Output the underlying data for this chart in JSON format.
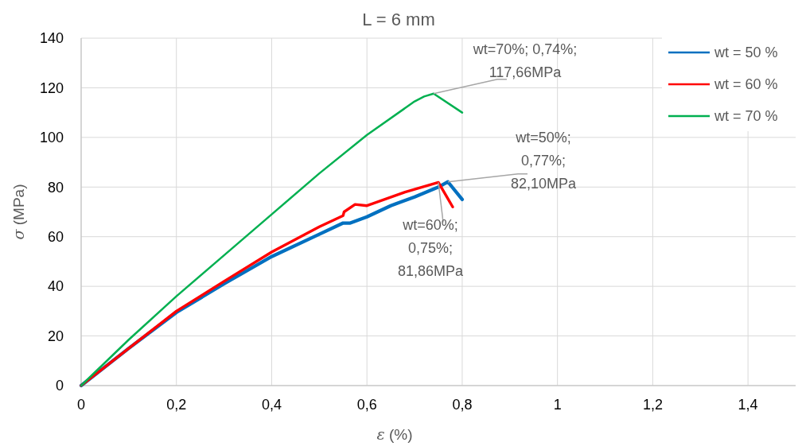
{
  "chart_data": {
    "type": "line",
    "title": "L = 6 mm",
    "xlabel": "ε (%)",
    "ylabel": "σ (MPa)",
    "xlim": [
      0,
      1.5
    ],
    "ylim": [
      0,
      140
    ],
    "xticks": [
      0,
      {
        "value": 0.2,
        "label": "0,2"
      },
      {
        "value": 0.4,
        "label": "0,4"
      },
      {
        "value": 0.6,
        "label": "0,6"
      },
      {
        "value": 0.8,
        "label": "0,8"
      },
      1,
      {
        "value": 1.2,
        "label": "1,2"
      },
      {
        "value": 1.4,
        "label": "1,4"
      }
    ],
    "yticks": [
      0,
      20,
      40,
      60,
      80,
      100,
      120,
      140
    ],
    "grid": true,
    "legend": "top right",
    "marker": "none",
    "line_style": "solid",
    "series": [
      {
        "name": "wt = 50 %",
        "color": "#0070c0",
        "x": [
          0,
          0.1,
          0.2,
          0.3,
          0.4,
          0.5,
          0.55,
          0.565,
          0.6,
          0.65,
          0.7,
          0.75,
          0.77,
          0.8
        ],
        "values": [
          0,
          15,
          29.5,
          41,
          52,
          61,
          65.5,
          65.5,
          68,
          72.5,
          76,
          80,
          82.1,
          75
        ]
      },
      {
        "name": "wt = 60 %",
        "color": "#ff0000",
        "x": [
          0,
          0.1,
          0.2,
          0.3,
          0.4,
          0.5,
          0.55,
          0.552,
          0.575,
          0.6,
          0.68,
          0.75,
          0.78
        ],
        "values": [
          0,
          15,
          30,
          42,
          53.8,
          64,
          68.5,
          70,
          73,
          72.5,
          78,
          81.86,
          72
        ]
      },
      {
        "name": "wt = 70 %",
        "color": "#00b050",
        "x": [
          0,
          0.1,
          0.2,
          0.3,
          0.4,
          0.5,
          0.6,
          0.7,
          0.72,
          0.74,
          0.8
        ],
        "values": [
          0,
          18.5,
          36,
          52.5,
          69,
          85.5,
          101,
          114.5,
          116.5,
          117.66,
          110
        ]
      }
    ],
    "annotations": [
      {
        "text": "wt=70%; 0,74%;\n117,66MPa",
        "x": 0.74,
        "y": 117.66
      },
      {
        "text": "wt=50%;\n0,77%;\n82,10MPa",
        "x": 0.77,
        "y": 82.1
      },
      {
        "text": "wt=60%;\n0,75%;\n81,86MPa",
        "x": 0.75,
        "y": 81.86
      }
    ]
  }
}
